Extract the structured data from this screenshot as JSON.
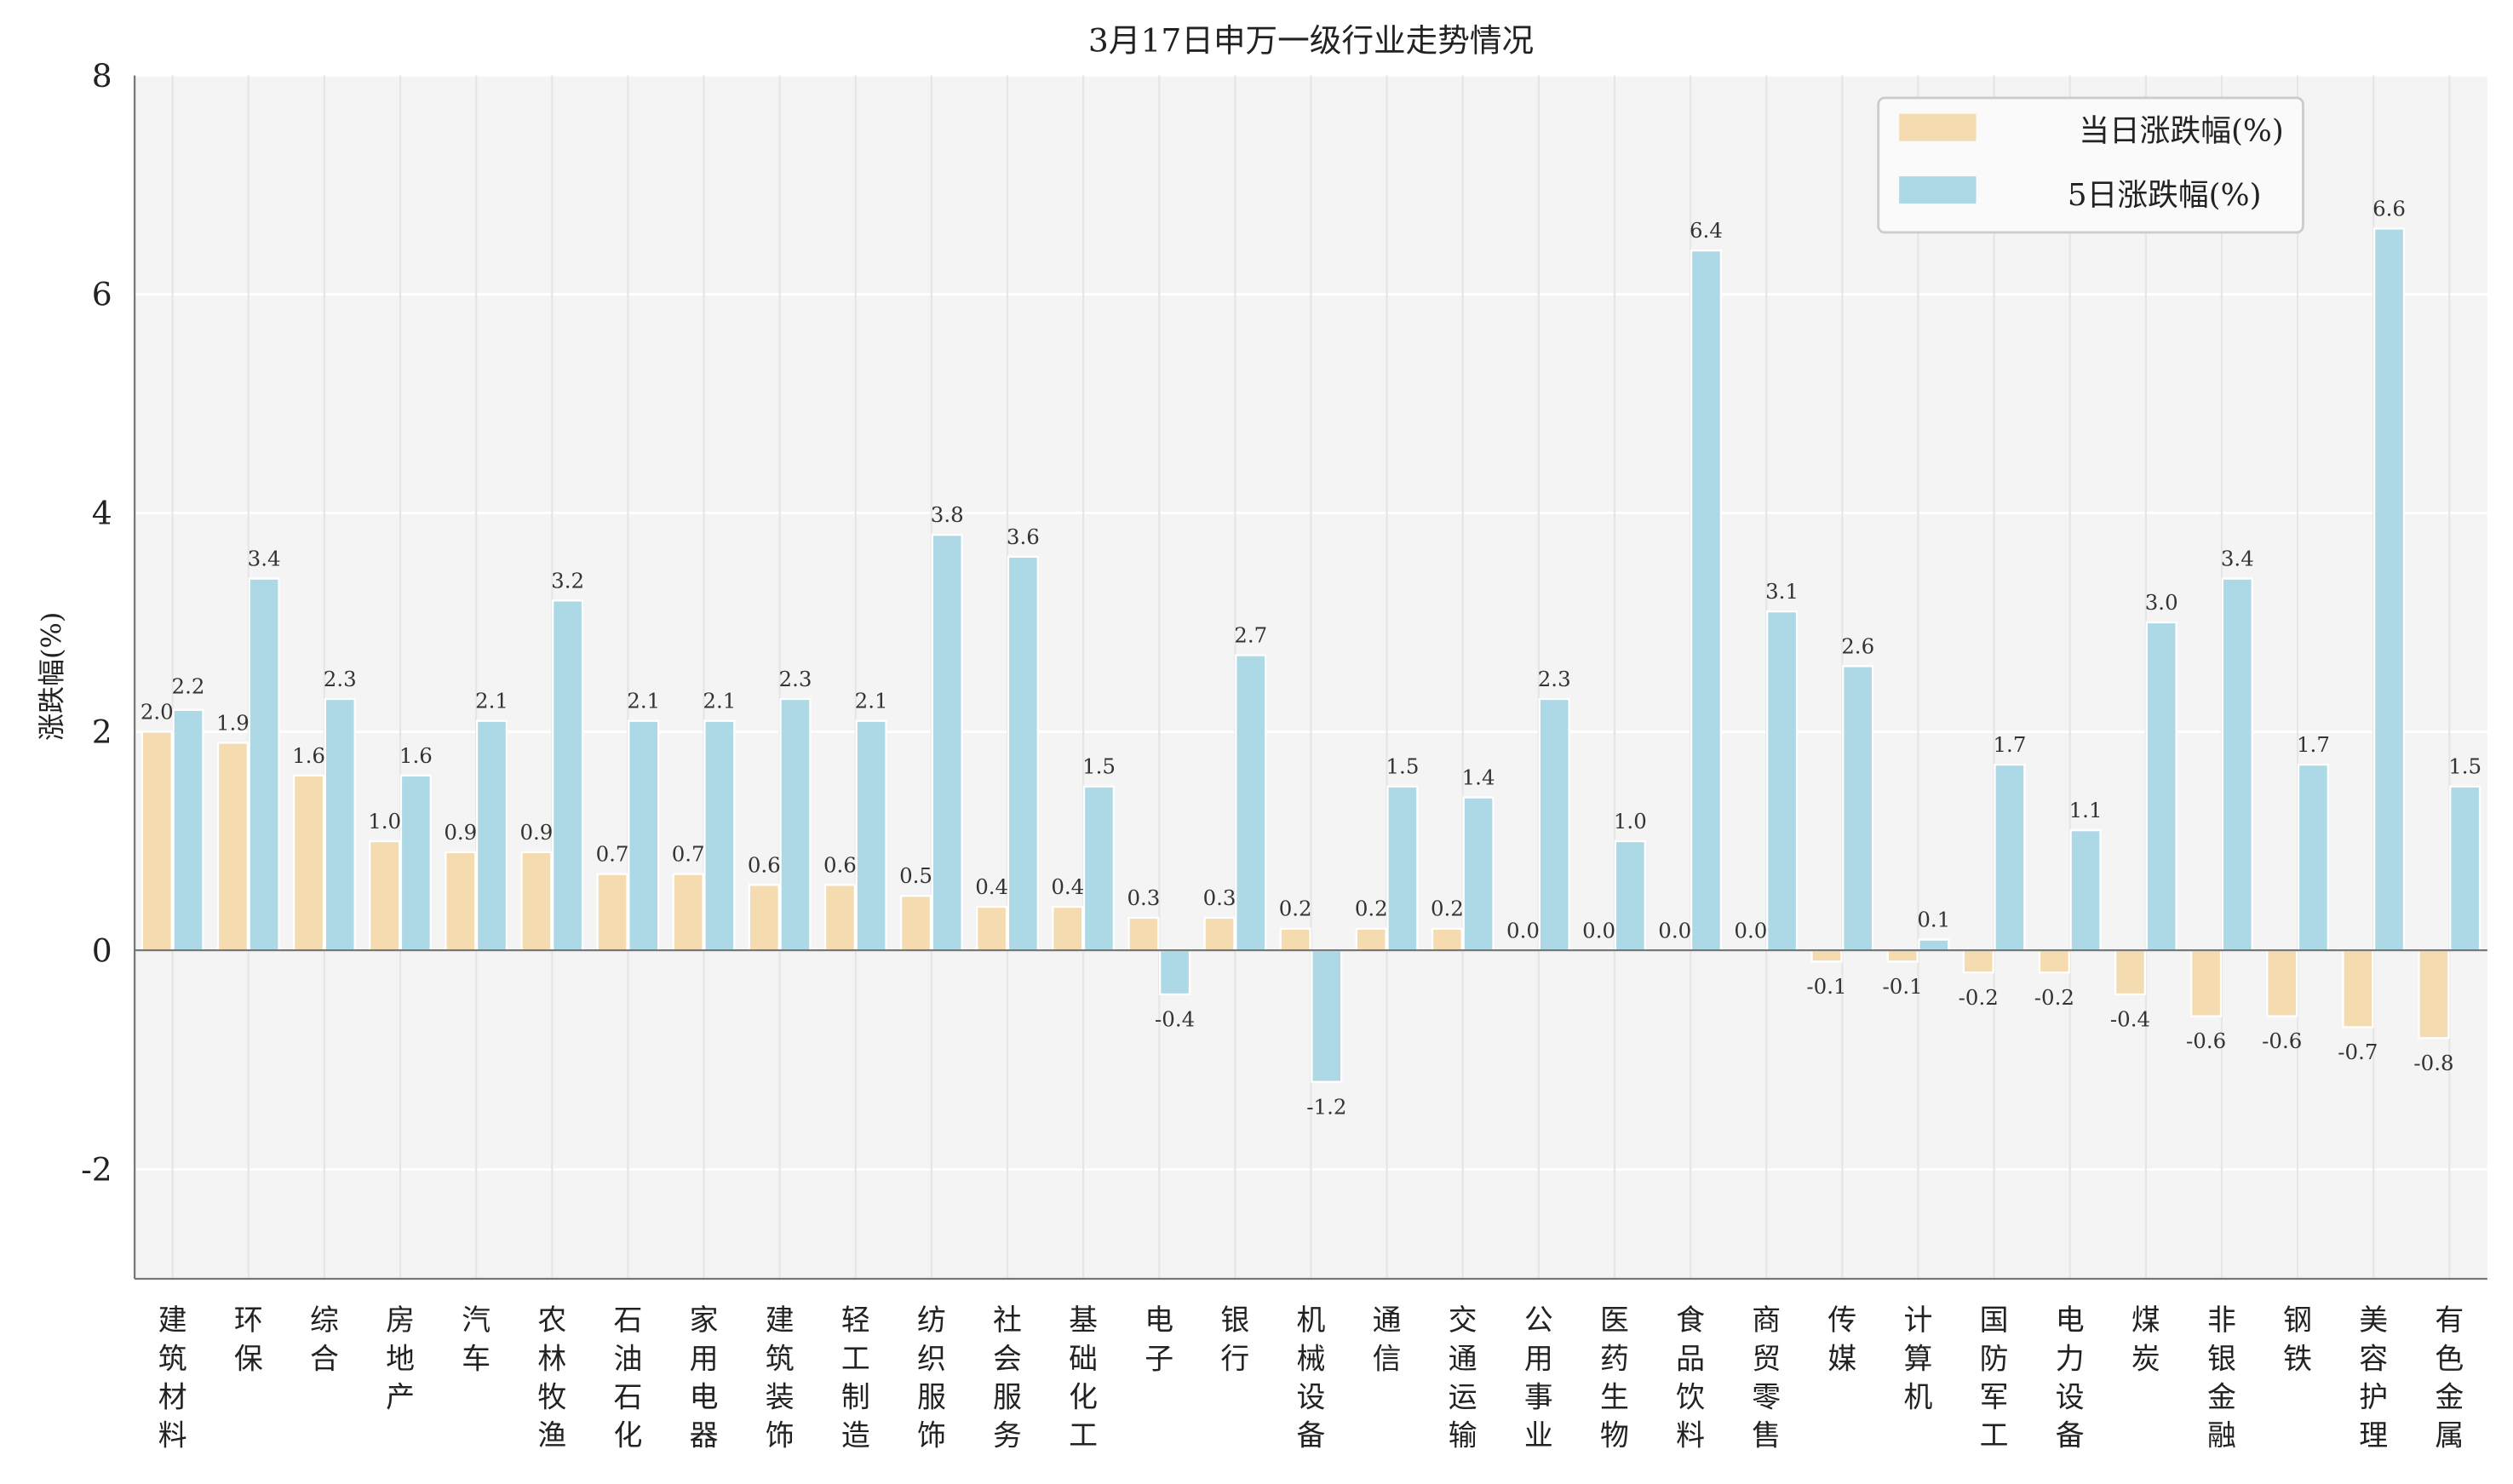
{
  "chart_data": {
    "type": "bar",
    "title": "3月17日申万一级行业走势情况",
    "ylabel": "涨跌幅(%)",
    "xlabel": "",
    "ylim": [
      -3,
      8
    ],
    "yticks": [
      -2,
      0,
      2,
      4,
      6,
      8
    ],
    "grid": true,
    "legend_position": "top-right",
    "categories": [
      "建筑材料",
      "环保",
      "综合",
      "房地产",
      "汽车",
      "农林牧渔",
      "石油石化",
      "家用电器",
      "建筑装饰",
      "轻工制造",
      "纺织服饰",
      "社会服务",
      "基础化工",
      "电子",
      "银行",
      "机械设备",
      "通信",
      "交通运输",
      "公用事业",
      "医药生物",
      "食品饮料",
      "商贸零售",
      "传媒",
      "计算机",
      "国防军工",
      "电力设备",
      "煤炭",
      "非银金融",
      "钢铁",
      "美容护理",
      "有色金属"
    ],
    "series": [
      {
        "name": "当日涨跌幅(%)",
        "color": "#f5dbb0",
        "values": [
          2.0,
          1.9,
          1.6,
          1.0,
          0.9,
          0.9,
          0.7,
          0.7,
          0.6,
          0.6,
          0.5,
          0.4,
          0.4,
          0.3,
          0.3,
          0.2,
          0.2,
          0.2,
          0.0,
          0.0,
          0.0,
          0.0,
          -0.1,
          -0.1,
          -0.2,
          -0.2,
          -0.4,
          -0.6,
          -0.6,
          -0.7,
          -0.8
        ]
      },
      {
        "name": "5日涨跌幅(%)",
        "color": "#add8e6",
        "values": [
          2.2,
          3.4,
          2.3,
          1.6,
          2.1,
          3.2,
          2.1,
          2.1,
          2.3,
          2.1,
          3.8,
          3.6,
          1.5,
          -0.4,
          2.7,
          -1.2,
          1.5,
          1.4,
          2.3,
          1.0,
          6.4,
          3.1,
          2.6,
          0.1,
          1.7,
          1.1,
          3.0,
          3.4,
          1.7,
          6.6,
          1.5
        ]
      }
    ]
  }
}
